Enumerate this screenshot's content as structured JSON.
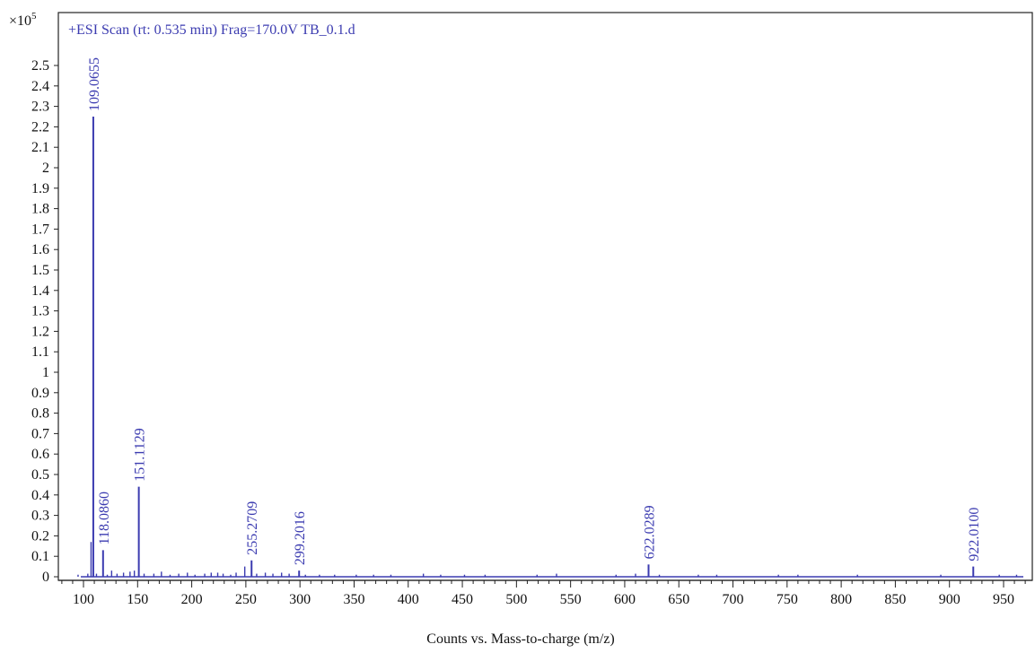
{
  "chart_data": {
    "type": "line",
    "title": "+ESI Scan (rt: 0.535 min) Frag=170.0V TB_0.1.d",
    "xlabel": "Counts vs. Mass-to-charge (m/z)",
    "ylabel": "",
    "y_multiplier": "×10",
    "y_multiplier_exp": "5",
    "xlim": [
      75,
      975
    ],
    "ylim": [
      0,
      2.62
    ],
    "x_ticks": [
      100,
      150,
      200,
      250,
      300,
      350,
      400,
      450,
      500,
      550,
      600,
      650,
      700,
      750,
      800,
      850,
      900,
      950
    ],
    "y_ticks": [
      0,
      0.1,
      0.2,
      0.3,
      0.4,
      0.5,
      0.6,
      0.7,
      0.8,
      0.9,
      1,
      1.1,
      1.2,
      1.3,
      1.4,
      1.5,
      1.6,
      1.7,
      1.8,
      1.9,
      2,
      2.1,
      2.2,
      2.3,
      2.4,
      2.5
    ],
    "grid": false,
    "color": "#3b3bb0",
    "labeled_peaks": [
      {
        "mz": 109.0655,
        "intensity": 2.25,
        "label": "109.0655"
      },
      {
        "mz": 118.086,
        "intensity": 0.13,
        "label": "118.0860"
      },
      {
        "mz": 151.1129,
        "intensity": 0.44,
        "label": "151.1129"
      },
      {
        "mz": 255.2709,
        "intensity": 0.08,
        "label": "255.2709"
      },
      {
        "mz": 299.2016,
        "intensity": 0.03,
        "label": "299.2016"
      },
      {
        "mz": 622.0289,
        "intensity": 0.06,
        "label": "622.0289"
      },
      {
        "mz": 922.01,
        "intensity": 0.05,
        "label": "922.0100"
      }
    ],
    "minor_peaks": [
      [
        95,
        0.01
      ],
      [
        104,
        0.015
      ],
      [
        107,
        0.17
      ],
      [
        112,
        0.015
      ],
      [
        122,
        0.01
      ],
      [
        126,
        0.03
      ],
      [
        131,
        0.015
      ],
      [
        137,
        0.02
      ],
      [
        143,
        0.025
      ],
      [
        147,
        0.03
      ],
      [
        156,
        0.015
      ],
      [
        165,
        0.015
      ],
      [
        172,
        0.025
      ],
      [
        180,
        0.01
      ],
      [
        188,
        0.015
      ],
      [
        196,
        0.02
      ],
      [
        203,
        0.01
      ],
      [
        212,
        0.015
      ],
      [
        218,
        0.02
      ],
      [
        224,
        0.02
      ],
      [
        229,
        0.015
      ],
      [
        236,
        0.01
      ],
      [
        241,
        0.02
      ],
      [
        249,
        0.05
      ],
      [
        260,
        0.015
      ],
      [
        268,
        0.02
      ],
      [
        275,
        0.015
      ],
      [
        283,
        0.02
      ],
      [
        290,
        0.015
      ],
      [
        305,
        0.01
      ],
      [
        318,
        0.01
      ],
      [
        332,
        0.01
      ],
      [
        352,
        0.01
      ],
      [
        368,
        0.01
      ],
      [
        384,
        0.01
      ],
      [
        414,
        0.015
      ],
      [
        430,
        0.01
      ],
      [
        452,
        0.01
      ],
      [
        471,
        0.01
      ],
      [
        519,
        0.01
      ],
      [
        537,
        0.015
      ],
      [
        592,
        0.01
      ],
      [
        610,
        0.015
      ],
      [
        632,
        0.01
      ],
      [
        668,
        0.01
      ],
      [
        685,
        0.01
      ],
      [
        742,
        0.01
      ],
      [
        760,
        0.01
      ],
      [
        815,
        0.01
      ],
      [
        892,
        0.01
      ],
      [
        946,
        0.01
      ],
      [
        962,
        0.01
      ]
    ]
  }
}
